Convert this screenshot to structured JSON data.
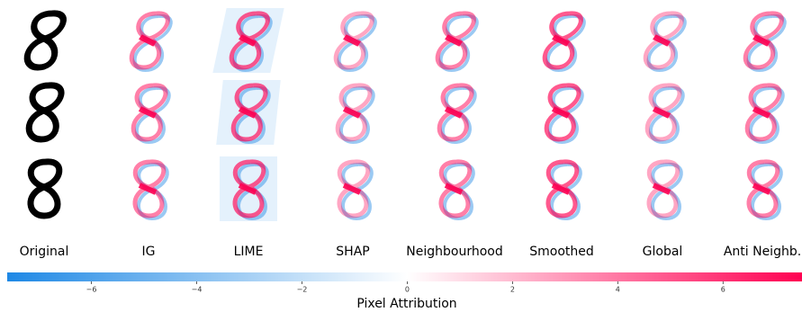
{
  "chart_data": {
    "type": "colorbar",
    "columns": [
      "Original",
      "IG",
      "LIME",
      "SHAP",
      "Neighbourhood",
      "Smoothed",
      "Global",
      "Anti Neighb."
    ],
    "label": "Pixel Attribution",
    "xlim": [
      -7.6,
      7.5
    ],
    "xticks": [
      {
        "value": -6,
        "label": "−6"
      },
      {
        "value": -4,
        "label": "−4"
      },
      {
        "value": -2,
        "label": "−2"
      },
      0,
      2,
      4,
      6
    ],
    "colors": {
      "negative": "#1e88e5",
      "zero": "#ffffff",
      "positive": "#ff0052"
    }
  }
}
